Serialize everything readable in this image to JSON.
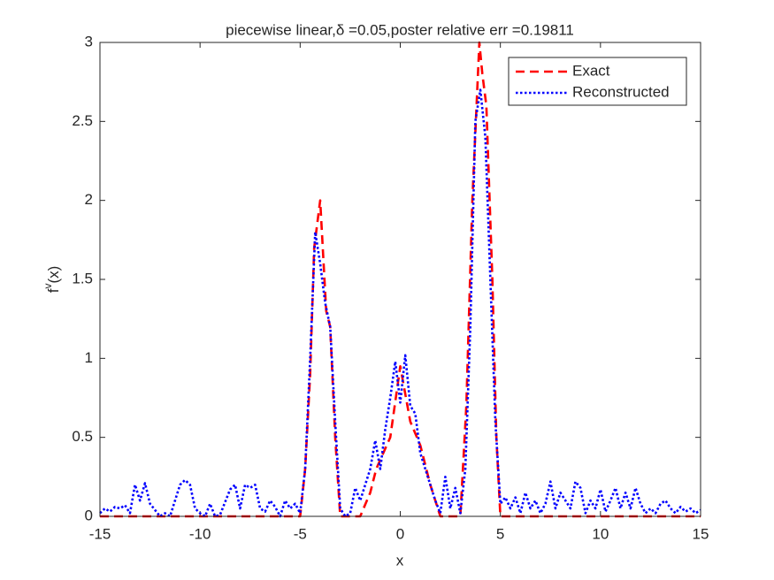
{
  "chart_data": {
    "type": "line",
    "title": "piecewise linear,δ =0.05,poster relative err =0.19811",
    "xlabel": "x",
    "ylabel": {
      "base": "f",
      "sup": "v",
      "rest": "(x)"
    },
    "xlim": [
      -15,
      15
    ],
    "xticks": [
      -15,
      -10,
      -5,
      0,
      5,
      10,
      15
    ],
    "ylim": [
      0,
      3
    ],
    "yticks": [
      0,
      0.5,
      1,
      1.5,
      2,
      2.5,
      3
    ],
    "grid": false,
    "legend": "top-right",
    "series": [
      {
        "name": "Exact",
        "color": "#ff0000",
        "linestyle": "dashed",
        "x": [
          -15,
          -5,
          -4.75,
          -4.5,
          -4.3,
          -4,
          -3.7,
          -3.5,
          -3.25,
          -3,
          -2,
          -1.5,
          -1.2,
          -0.5,
          0,
          0.5,
          1,
          1.5,
          2,
          3,
          3.3,
          3.6,
          3.95,
          4.1,
          4.3,
          4.6,
          4.8,
          5,
          15
        ],
        "values": [
          0,
          0,
          0.3,
          0.9,
          1.7,
          2,
          1.3,
          1.2,
          0.5,
          0,
          0,
          0.15,
          0.3,
          0.5,
          0.95,
          0.6,
          0.45,
          0.2,
          0,
          0,
          0.7,
          2,
          3,
          2.8,
          2.6,
          1.5,
          0.5,
          0,
          0
        ]
      },
      {
        "name": "Reconstructed",
        "color": "#0000ff",
        "linestyle": "dotted",
        "x": [
          -15,
          -14.75,
          -14.5,
          -14.25,
          -14,
          -13.75,
          -13.5,
          -13.25,
          -13,
          -12.75,
          -12.5,
          -12.25,
          -12,
          -11.75,
          -11.5,
          -11.25,
          -11,
          -10.75,
          -10.5,
          -10.25,
          -10,
          -9.75,
          -9.5,
          -9.25,
          -9,
          -8.75,
          -8.5,
          -8.25,
          -8,
          -7.75,
          -7.5,
          -7.25,
          -7,
          -6.75,
          -6.5,
          -6.25,
          -6,
          -5.75,
          -5.5,
          -5.25,
          -5,
          -4.75,
          -4.5,
          -4.25,
          -4,
          -3.75,
          -3.5,
          -3.25,
          -3,
          -2.75,
          -2.5,
          -2.25,
          -2,
          -1.75,
          -1.5,
          -1.25,
          -1,
          -0.75,
          -0.5,
          -0.25,
          0,
          0.25,
          0.5,
          0.75,
          1,
          1.25,
          1.5,
          1.75,
          2,
          2.25,
          2.5,
          2.75,
          3,
          3.25,
          3.5,
          3.75,
          4,
          4.25,
          4.5,
          4.75,
          5,
          5.25,
          5.5,
          5.75,
          6,
          6.25,
          6.5,
          6.75,
          7,
          7.25,
          7.5,
          7.75,
          8,
          8.25,
          8.5,
          8.75,
          9,
          9.25,
          9.5,
          9.75,
          10,
          10.25,
          10.5,
          10.75,
          11,
          11.25,
          11.5,
          11.75,
          12,
          12.25,
          12.5,
          12.75,
          13,
          13.25,
          13.5,
          13.75,
          14,
          14.25,
          14.5,
          14.75,
          15
        ],
        "values": [
          0.02,
          0.05,
          0.03,
          0.06,
          0.05,
          0.07,
          0.02,
          0.2,
          0.1,
          0.21,
          0.08,
          0.04,
          0,
          0.02,
          0,
          0.1,
          0.2,
          0.23,
          0.2,
          0.05,
          0.02,
          0,
          0.08,
          0,
          0.01,
          0.09,
          0.17,
          0.2,
          0.05,
          0.2,
          0.18,
          0.2,
          0.05,
          0.03,
          0.1,
          0.06,
          0,
          0.1,
          0.05,
          0.08,
          0.02,
          0.3,
          1.0,
          1.8,
          1.6,
          1.35,
          1.2,
          0.6,
          0.05,
          0,
          0.02,
          0.18,
          0.1,
          0.2,
          0.3,
          0.48,
          0.3,
          0.55,
          0.75,
          0.98,
          0.72,
          1.02,
          0.7,
          0.65,
          0.4,
          0.3,
          0.2,
          0.1,
          0.02,
          0.25,
          0.05,
          0.18,
          0.02,
          0.3,
          1.2,
          2.5,
          2.7,
          2.4,
          1.5,
          0.6,
          0.08,
          0.12,
          0.05,
          0.12,
          0.02,
          0.15,
          0.05,
          0.1,
          0.02,
          0.08,
          0.22,
          0.05,
          0.15,
          0.1,
          0.05,
          0.22,
          0.18,
          0.02,
          0.1,
          0.05,
          0.17,
          0.03,
          0.1,
          0.18,
          0.05,
          0.15,
          0.05,
          0.18,
          0.08,
          0.02,
          0.05,
          0.02,
          0.08,
          0.1,
          0.05,
          0.02,
          0.06,
          0.03,
          0.05,
          0.02,
          0.04
        ]
      }
    ]
  }
}
